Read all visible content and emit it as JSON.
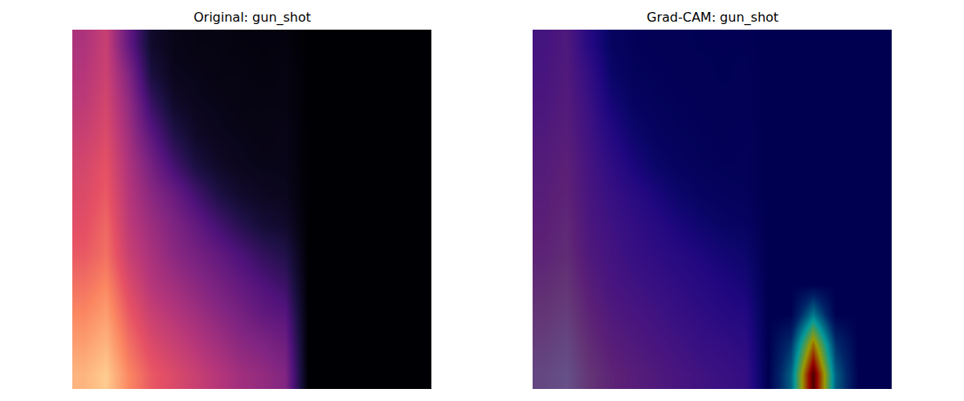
{
  "chart_data": [
    {
      "type": "heatmap",
      "title": "Original: gun_shot",
      "tick_labels": false,
      "zlim": [
        0,
        1
      ],
      "series": [
        {
          "color": "magma",
          "z": [
            [
              0.85,
              0.9,
              0.75,
              0.65,
              0.6,
              0.55,
              0.5,
              0.45,
              0.42,
              0.38,
              0,
              0,
              0,
              0,
              0,
              0
            ],
            [
              0.8,
              0.85,
              0.7,
              0.6,
              0.55,
              0.5,
              0.45,
              0.4,
              0.37,
              0.33,
              0,
              0,
              0,
              0,
              0,
              0
            ],
            [
              0.75,
              0.8,
              0.65,
              0.55,
              0.5,
              0.45,
              0.4,
              0.35,
              0.3,
              0.27,
              0,
              0,
              0,
              0,
              0,
              0
            ],
            [
              0.7,
              0.75,
              0.6,
              0.5,
              0.45,
              0.4,
              0.35,
              0.3,
              0.25,
              0.2,
              0,
              0,
              0,
              0,
              0,
              0
            ],
            [
              0.65,
              0.7,
              0.55,
              0.47,
              0.4,
              0.35,
              0.3,
              0.24,
              0.18,
              0.14,
              0,
              0,
              0,
              0,
              0,
              0
            ],
            [
              0.62,
              0.68,
              0.52,
              0.44,
              0.37,
              0.3,
              0.22,
              0.15,
              0.1,
              0.08,
              0,
              0,
              0,
              0,
              0,
              0
            ],
            [
              0.6,
              0.65,
              0.5,
              0.4,
              0.32,
              0.22,
              0.13,
              0.08,
              0.06,
              0.05,
              0,
              0,
              0,
              0,
              0,
              0
            ],
            [
              0.58,
              0.63,
              0.48,
              0.35,
              0.22,
              0.12,
              0.07,
              0.05,
              0.04,
              0.04,
              0,
              0,
              0,
              0,
              0,
              0
            ],
            [
              0.55,
              0.6,
              0.45,
              0.28,
              0.14,
              0.07,
              0.05,
              0.04,
              0.03,
              0.04,
              0,
              0,
              0,
              0,
              0,
              0
            ],
            [
              0.52,
              0.58,
              0.42,
              0.2,
              0.08,
              0.05,
              0.04,
              0.03,
              0.03,
              0.03,
              0,
              0,
              0,
              0,
              0,
              0
            ],
            [
              0.5,
              0.56,
              0.38,
              0.12,
              0.05,
              0.04,
              0.03,
              0.03,
              0.02,
              0.03,
              0,
              0,
              0,
              0,
              0,
              0
            ],
            [
              0.48,
              0.55,
              0.3,
              0.08,
              0.04,
              0.03,
              0.03,
              0.02,
              0.02,
              0.02,
              0,
              0,
              0,
              0,
              0,
              0
            ]
          ]
        }
      ]
    },
    {
      "type": "heatmap",
      "title": "Grad-CAM: gun_shot",
      "tick_labels": false,
      "zlim": [
        0,
        1
      ],
      "series": [
        {
          "color": "magma",
          "z": [
            [
              0.85,
              0.9,
              0.75,
              0.65,
              0.6,
              0.55,
              0.5,
              0.45,
              0.42,
              0.38,
              0,
              0,
              0,
              0,
              0,
              0
            ],
            [
              0.8,
              0.85,
              0.7,
              0.6,
              0.55,
              0.5,
              0.45,
              0.4,
              0.37,
              0.33,
              0,
              0,
              0,
              0,
              0,
              0
            ],
            [
              0.75,
              0.8,
              0.65,
              0.55,
              0.5,
              0.45,
              0.4,
              0.35,
              0.3,
              0.27,
              0,
              0,
              0,
              0,
              0,
              0
            ],
            [
              0.7,
              0.75,
              0.6,
              0.5,
              0.45,
              0.4,
              0.35,
              0.3,
              0.25,
              0.2,
              0,
              0,
              0,
              0,
              0,
              0
            ],
            [
              0.65,
              0.7,
              0.55,
              0.47,
              0.4,
              0.35,
              0.3,
              0.24,
              0.18,
              0.14,
              0,
              0,
              0,
              0,
              0,
              0
            ],
            [
              0.62,
              0.68,
              0.52,
              0.44,
              0.37,
              0.3,
              0.22,
              0.15,
              0.1,
              0.08,
              0,
              0,
              0,
              0,
              0,
              0
            ],
            [
              0.6,
              0.65,
              0.5,
              0.4,
              0.32,
              0.22,
              0.13,
              0.08,
              0.06,
              0.05,
              0,
              0,
              0,
              0,
              0,
              0
            ],
            [
              0.58,
              0.63,
              0.48,
              0.35,
              0.22,
              0.12,
              0.07,
              0.05,
              0.04,
              0.04,
              0,
              0,
              0,
              0,
              0,
              0
            ],
            [
              0.55,
              0.6,
              0.45,
              0.28,
              0.14,
              0.07,
              0.05,
              0.04,
              0.03,
              0.04,
              0,
              0,
              0,
              0,
              0,
              0
            ],
            [
              0.52,
              0.58,
              0.42,
              0.2,
              0.08,
              0.05,
              0.04,
              0.03,
              0.03,
              0.03,
              0,
              0,
              0,
              0,
              0,
              0
            ],
            [
              0.5,
              0.56,
              0.38,
              0.12,
              0.05,
              0.04,
              0.03,
              0.03,
              0.02,
              0.03,
              0,
              0,
              0,
              0,
              0,
              0
            ],
            [
              0.48,
              0.55,
              0.3,
              0.08,
              0.04,
              0.03,
              0.03,
              0.02,
              0.02,
              0.02,
              0,
              0,
              0,
              0,
              0,
              0
            ]
          ]
        },
        {
          "color": "jet",
          "z": [
            [
              0,
              0,
              0,
              0,
              0,
              0,
              0,
              0,
              0,
              0,
              0,
              0.25,
              1,
              0.25,
              0,
              0
            ],
            [
              0,
              0,
              0,
              0,
              0,
              0,
              0,
              0,
              0,
              0,
              0,
              0.15,
              0.7,
              0.15,
              0,
              0
            ],
            [
              0,
              0,
              0,
              0,
              0,
              0,
              0,
              0,
              0,
              0,
              0,
              0,
              0.3,
              0,
              0,
              0
            ],
            [
              0,
              0,
              0,
              0,
              0,
              0,
              0,
              0,
              0,
              0,
              0,
              0,
              0,
              0,
              0,
              0
            ],
            [
              0,
              0,
              0,
              0,
              0,
              0,
              0,
              0,
              0,
              0,
              0,
              0,
              0,
              0,
              0,
              0
            ],
            [
              0,
              0,
              0,
              0,
              0,
              0,
              0,
              0,
              0,
              0,
              0,
              0,
              0,
              0,
              0,
              0
            ],
            [
              0,
              0,
              0,
              0,
              0,
              0,
              0,
              0,
              0,
              0,
              0,
              0,
              0,
              0,
              0,
              0
            ],
            [
              0,
              0,
              0,
              0,
              0,
              0,
              0,
              0,
              0,
              0,
              0,
              0,
              0,
              0,
              0,
              0
            ],
            [
              0,
              0,
              0,
              0,
              0,
              0,
              0,
              0,
              0,
              0,
              0,
              0,
              0,
              0,
              0,
              0
            ],
            [
              0,
              0,
              0,
              0,
              0,
              0,
              0,
              0,
              0,
              0,
              0,
              0,
              0,
              0,
              0,
              0
            ],
            [
              0,
              0,
              0,
              0,
              0,
              0,
              0,
              0,
              0,
              0,
              0,
              0,
              0,
              0,
              0,
              0
            ],
            [
              0,
              0,
              0,
              0,
              0,
              0,
              0,
              0,
              0,
              0,
              0,
              0,
              0,
              0,
              0,
              0
            ]
          ]
        }
      ]
    }
  ]
}
